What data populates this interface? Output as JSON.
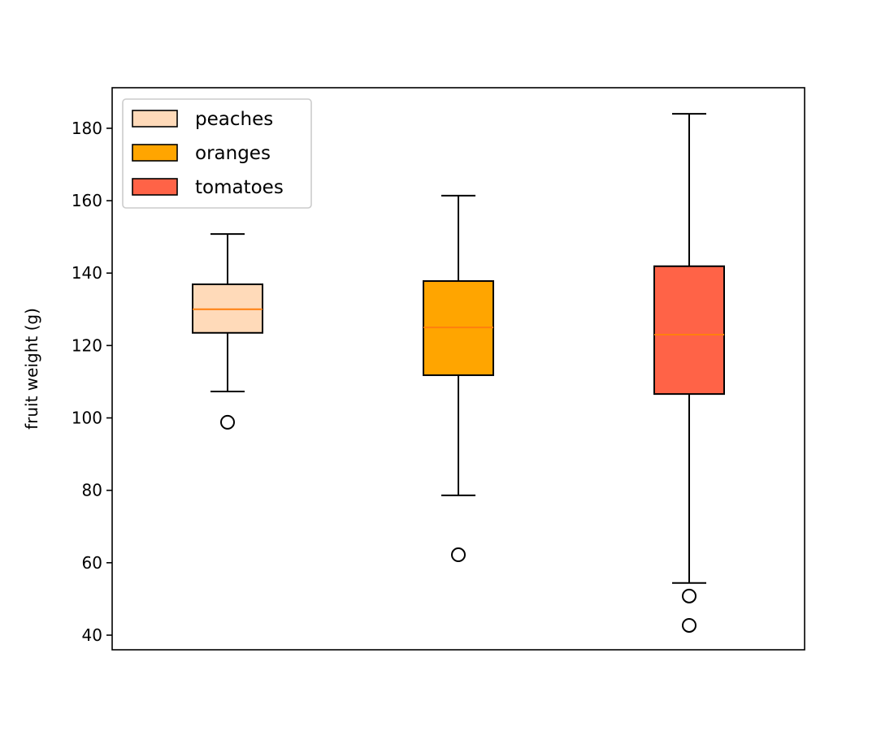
{
  "chart_data": {
    "type": "boxplot",
    "title": "",
    "xlabel": "",
    "ylabel": "fruit weight (g)",
    "ylim": [
      35.96,
      191.2
    ],
    "yticks": [
      40,
      60,
      80,
      100,
      120,
      140,
      160,
      180
    ],
    "grid": false,
    "legend_position": "top-left",
    "median_color": "#FF7F0E",
    "series": [
      {
        "name": "peaches",
        "color": "#FFDAB9",
        "whisker_low": 107.3,
        "q1": 123.5,
        "median": 130.0,
        "q3": 136.9,
        "whisker_high": 150.8,
        "outliers": [
          98.8
        ]
      },
      {
        "name": "oranges",
        "color": "#FFA500",
        "whisker_low": 78.6,
        "q1": 111.8,
        "median": 125.0,
        "q3": 137.8,
        "whisker_high": 161.4,
        "outliers": [
          62.2
        ]
      },
      {
        "name": "tomatoes",
        "color": "#FF6347",
        "whisker_low": 54.4,
        "q1": 106.6,
        "median": 123.0,
        "q3": 141.9,
        "whisker_high": 184.0,
        "outliers": [
          50.8,
          42.7
        ]
      }
    ]
  }
}
